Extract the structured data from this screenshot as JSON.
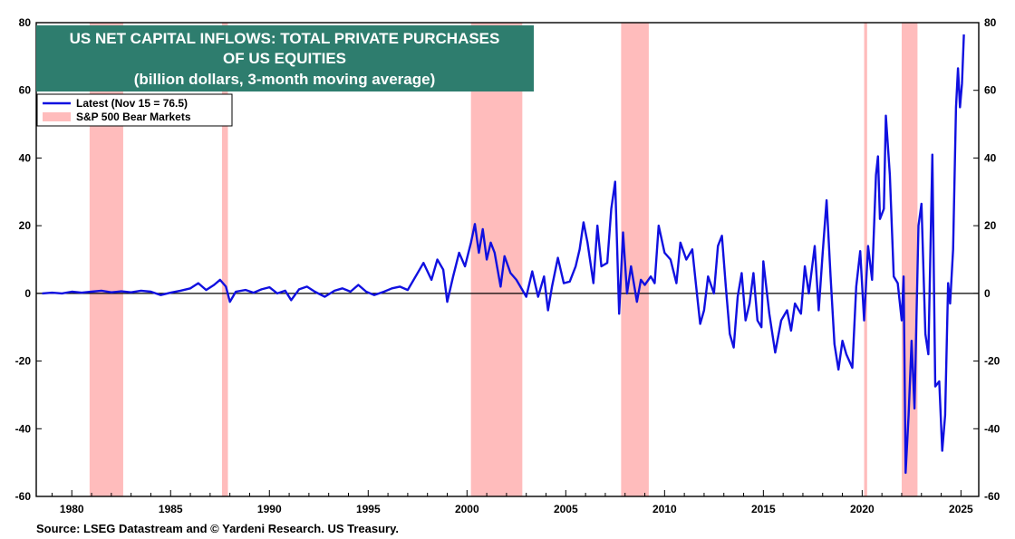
{
  "chart_data": {
    "type": "line",
    "title_lines": [
      "US NET CAPITAL INFLOWS: TOTAL PRIVATE PURCHASES",
      "OF US EQUITIES",
      "(billion dollars, 3-month moving average)"
    ],
    "source": "Source: LSEG Datastream and © Yardeni Research. US Treasury.",
    "ylim": [
      -60,
      80
    ],
    "y_ticks": [
      -60,
      -40,
      -20,
      0,
      20,
      40,
      60,
      80
    ],
    "y_tick_labels": [
      "-60",
      "-40",
      "-20",
      "0",
      "20",
      "40",
      "60",
      "80"
    ],
    "xlim": [
      1978.2,
      2025.9
    ],
    "x_ticks": [
      1980,
      1985,
      1990,
      1995,
      2000,
      2005,
      2010,
      2015,
      2020,
      2025
    ],
    "x_tick_labels": [
      "1980",
      "1985",
      "1990",
      "1995",
      "2000",
      "2005",
      "2010",
      "2015",
      "2020",
      "2025"
    ],
    "legend": {
      "placement": "top-left",
      "entries": [
        {
          "label": "Latest (Nov 15 = 76.5)",
          "kind": "line",
          "color": "#1010e0"
        },
        {
          "label": "S&P 500 Bear Markets",
          "kind": "band",
          "color": "#ffbcbc"
        }
      ]
    },
    "bear_markets": [
      [
        1980.9,
        1982.6
      ],
      [
        1987.6,
        1987.9
      ],
      [
        2000.2,
        2002.8
      ],
      [
        2007.8,
        2009.2
      ],
      [
        2020.1,
        2020.25
      ],
      [
        2022.0,
        2022.8
      ]
    ],
    "series": [
      {
        "color": "#1010e0",
        "points": [
          [
            1978.5,
            0.0
          ],
          [
            1979.0,
            0.2
          ],
          [
            1979.5,
            0.0
          ],
          [
            1980.0,
            0.5
          ],
          [
            1980.5,
            0.2
          ],
          [
            1981.0,
            0.5
          ],
          [
            1981.5,
            0.8
          ],
          [
            1982.0,
            0.3
          ],
          [
            1982.5,
            0.6
          ],
          [
            1983.0,
            0.3
          ],
          [
            1983.5,
            0.8
          ],
          [
            1984.0,
            0.5
          ],
          [
            1984.5,
            -0.5
          ],
          [
            1985.0,
            0.2
          ],
          [
            1985.5,
            0.8
          ],
          [
            1986.0,
            1.5
          ],
          [
            1986.4,
            3.0
          ],
          [
            1986.8,
            1.0
          ],
          [
            1987.2,
            2.5
          ],
          [
            1987.5,
            4.0
          ],
          [
            1987.8,
            2.0
          ],
          [
            1988.0,
            -2.5
          ],
          [
            1988.3,
            0.5
          ],
          [
            1988.8,
            1.0
          ],
          [
            1989.2,
            0.2
          ],
          [
            1989.6,
            1.2
          ],
          [
            1990.0,
            1.8
          ],
          [
            1990.4,
            0.0
          ],
          [
            1990.8,
            0.8
          ],
          [
            1991.1,
            -2.0
          ],
          [
            1991.5,
            1.2
          ],
          [
            1991.9,
            2.0
          ],
          [
            1992.3,
            0.5
          ],
          [
            1992.8,
            -1.0
          ],
          [
            1993.3,
            0.8
          ],
          [
            1993.7,
            1.5
          ],
          [
            1994.1,
            0.5
          ],
          [
            1994.5,
            2.5
          ],
          [
            1994.9,
            0.5
          ],
          [
            1995.3,
            -0.5
          ],
          [
            1995.8,
            0.5
          ],
          [
            1996.2,
            1.5
          ],
          [
            1996.6,
            2.0
          ],
          [
            1997.0,
            1.0
          ],
          [
            1997.4,
            5.0
          ],
          [
            1997.8,
            9.0
          ],
          [
            1998.2,
            4.0
          ],
          [
            1998.5,
            10.0
          ],
          [
            1998.8,
            7.0
          ],
          [
            1999.0,
            -2.5
          ],
          [
            1999.3,
            5.0
          ],
          [
            1999.6,
            12.0
          ],
          [
            1999.9,
            8.0
          ],
          [
            2000.2,
            15.0
          ],
          [
            2000.4,
            20.5
          ],
          [
            2000.6,
            12.0
          ],
          [
            2000.8,
            19.0
          ],
          [
            2001.0,
            10.0
          ],
          [
            2001.2,
            15.0
          ],
          [
            2001.4,
            12.0
          ],
          [
            2001.7,
            2.0
          ],
          [
            2001.9,
            11.0
          ],
          [
            2002.2,
            6.0
          ],
          [
            2002.5,
            4.0
          ],
          [
            2002.8,
            1.0
          ],
          [
            2003.0,
            -1.0
          ],
          [
            2003.3,
            6.5
          ],
          [
            2003.6,
            -1.0
          ],
          [
            2003.9,
            5.0
          ],
          [
            2004.1,
            -5.0
          ],
          [
            2004.3,
            2.0
          ],
          [
            2004.6,
            10.5
          ],
          [
            2004.9,
            3.0
          ],
          [
            2005.2,
            3.5
          ],
          [
            2005.5,
            8.0
          ],
          [
            2005.7,
            13.0
          ],
          [
            2005.9,
            21.0
          ],
          [
            2006.1,
            15.0
          ],
          [
            2006.4,
            3.0
          ],
          [
            2006.6,
            20.0
          ],
          [
            2006.8,
            8.0
          ],
          [
            2007.1,
            9.0
          ],
          [
            2007.3,
            25.0
          ],
          [
            2007.5,
            33.0
          ],
          [
            2007.7,
            -6.0
          ],
          [
            2007.9,
            18.0
          ],
          [
            2008.1,
            0.0
          ],
          [
            2008.3,
            8.0
          ],
          [
            2008.6,
            -2.5
          ],
          [
            2008.8,
            4.0
          ],
          [
            2009.0,
            2.5
          ],
          [
            2009.3,
            5.0
          ],
          [
            2009.5,
            3.0
          ],
          [
            2009.7,
            20.0
          ],
          [
            2010.0,
            12.0
          ],
          [
            2010.3,
            10.0
          ],
          [
            2010.6,
            3.0
          ],
          [
            2010.8,
            15.0
          ],
          [
            2011.1,
            10.0
          ],
          [
            2011.4,
            13.0
          ],
          [
            2011.6,
            2.0
          ],
          [
            2011.8,
            -9.0
          ],
          [
            2012.0,
            -5.0
          ],
          [
            2012.2,
            5.0
          ],
          [
            2012.5,
            0.0
          ],
          [
            2012.7,
            14.0
          ],
          [
            2012.9,
            17.0
          ],
          [
            2013.1,
            2.0
          ],
          [
            2013.3,
            -12.0
          ],
          [
            2013.5,
            -16.0
          ],
          [
            2013.7,
            -1.0
          ],
          [
            2013.9,
            6.0
          ],
          [
            2014.1,
            -8.0
          ],
          [
            2014.3,
            -3.0
          ],
          [
            2014.5,
            6.0
          ],
          [
            2014.7,
            -8.0
          ],
          [
            2014.9,
            -10.0
          ],
          [
            2015.0,
            9.5
          ],
          [
            2015.3,
            -6.0
          ],
          [
            2015.6,
            -17.5
          ],
          [
            2015.9,
            -8.0
          ],
          [
            2016.2,
            -5.0
          ],
          [
            2016.4,
            -11.0
          ],
          [
            2016.6,
            -3.0
          ],
          [
            2016.9,
            -6.0
          ],
          [
            2017.1,
            8.0
          ],
          [
            2017.3,
            0.0
          ],
          [
            2017.6,
            14.0
          ],
          [
            2017.8,
            -5.0
          ],
          [
            2018.0,
            12.0
          ],
          [
            2018.2,
            27.5
          ],
          [
            2018.4,
            5.0
          ],
          [
            2018.6,
            -15.0
          ],
          [
            2018.8,
            -22.5
          ],
          [
            2019.0,
            -14.0
          ],
          [
            2019.2,
            -18.0
          ],
          [
            2019.5,
            -22.0
          ],
          [
            2019.7,
            2.0
          ],
          [
            2019.9,
            12.5
          ],
          [
            2020.1,
            -8.0
          ],
          [
            2020.3,
            14.0
          ],
          [
            2020.5,
            4.0
          ],
          [
            2020.7,
            35.0
          ],
          [
            2020.8,
            40.5
          ],
          [
            2020.9,
            22.0
          ],
          [
            2021.1,
            25.0
          ],
          [
            2021.2,
            52.5
          ],
          [
            2021.4,
            35.0
          ],
          [
            2021.6,
            5.0
          ],
          [
            2021.8,
            3.0
          ],
          [
            2022.0,
            -8.0
          ],
          [
            2022.1,
            5.0
          ],
          [
            2022.2,
            -53.0
          ],
          [
            2022.35,
            -36.0
          ],
          [
            2022.5,
            -14.0
          ],
          [
            2022.65,
            -34.0
          ],
          [
            2022.85,
            20.0
          ],
          [
            2023.0,
            26.5
          ],
          [
            2023.2,
            -12.0
          ],
          [
            2023.35,
            -18.0
          ],
          [
            2023.55,
            41.0
          ],
          [
            2023.7,
            -27.5
          ],
          [
            2023.9,
            -26.0
          ],
          [
            2024.05,
            -46.5
          ],
          [
            2024.2,
            -36.0
          ],
          [
            2024.35,
            3.0
          ],
          [
            2024.45,
            -3.0
          ],
          [
            2024.6,
            13.0
          ],
          [
            2024.75,
            55.0
          ],
          [
            2024.85,
            66.5
          ],
          [
            2024.95,
            55.0
          ],
          [
            2025.05,
            62.0
          ],
          [
            2025.15,
            76.5
          ]
        ]
      }
    ]
  }
}
